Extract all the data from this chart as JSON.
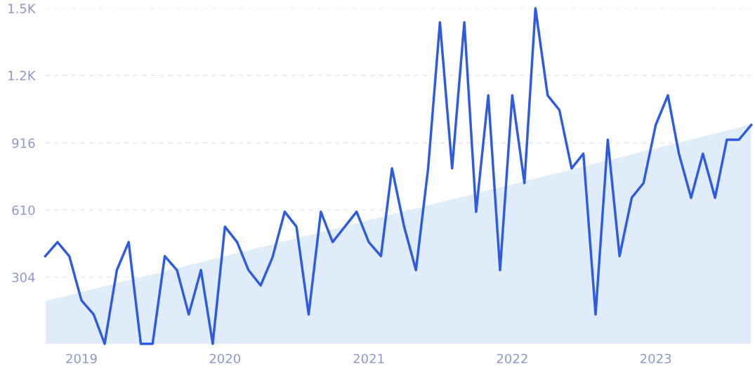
{
  "chart_data": {
    "type": "line",
    "x": [
      "2018-10",
      "2018-11",
      "2018-12",
      "2019-01",
      "2019-02",
      "2019-03",
      "2019-04",
      "2019-05",
      "2019-06",
      "2019-07",
      "2019-08",
      "2019-09",
      "2019-10",
      "2019-11",
      "2019-12",
      "2020-01",
      "2020-02",
      "2020-03",
      "2020-04",
      "2020-05",
      "2020-06",
      "2020-07",
      "2020-08",
      "2020-09",
      "2020-10",
      "2020-11",
      "2020-12",
      "2021-01",
      "2021-02",
      "2021-03",
      "2021-04",
      "2021-05",
      "2021-06",
      "2021-07",
      "2021-08",
      "2021-09",
      "2021-10",
      "2021-11",
      "2021-12",
      "2022-01",
      "2022-02",
      "2022-03",
      "2022-04",
      "2022-05",
      "2022-06",
      "2022-07",
      "2022-08",
      "2022-09",
      "2022-10",
      "2022-11",
      "2022-12",
      "2023-01",
      "2023-02",
      "2023-03",
      "2023-04",
      "2023-05",
      "2023-06",
      "2023-07",
      "2023-08",
      "2023-09"
    ],
    "series": [
      {
        "type": "area",
        "color": "#e1ecfb",
        "x": [
          "2018-10",
          "2023-09"
        ],
        "values": [
          195,
          1000
        ]
      },
      {
        "color": "#2e5be0",
        "values": [
          400,
          464,
          400,
          198,
          134,
          0,
          336,
          464,
          0,
          0,
          400,
          336,
          134,
          336,
          0,
          534,
          464,
          336,
          266,
          394,
          602,
          534,
          134,
          602,
          464,
          534,
          602,
          464,
          400,
          800,
          534,
          336,
          800,
          1466,
          800,
          1466,
          602,
          1133,
          336,
          1133,
          733,
          1530,
          1133,
          1066,
          800,
          867,
          134,
          931,
          400,
          666,
          733,
          998,
          1133,
          867,
          666,
          867,
          666,
          931,
          931,
          998
        ]
      }
    ],
    "xlim": [
      "2018-10",
      "2023-09"
    ],
    "xticks": [
      {
        "value": "2019-01",
        "label": "2019"
      },
      {
        "value": "2020-01",
        "label": "2020"
      },
      {
        "value": "2021-01",
        "label": "2021"
      },
      {
        "value": "2022-01",
        "label": "2022"
      },
      {
        "value": "2023-01",
        "label": "2023"
      }
    ],
    "ylim": [
      0,
      1530
    ],
    "yticks": [
      304,
      610,
      916,
      {
        "value": 1224,
        "label": "1.2K"
      },
      {
        "value": 1530,
        "label": "1.5K"
      }
    ],
    "grid": "y",
    "line_style": "solid",
    "marker": "none"
  }
}
